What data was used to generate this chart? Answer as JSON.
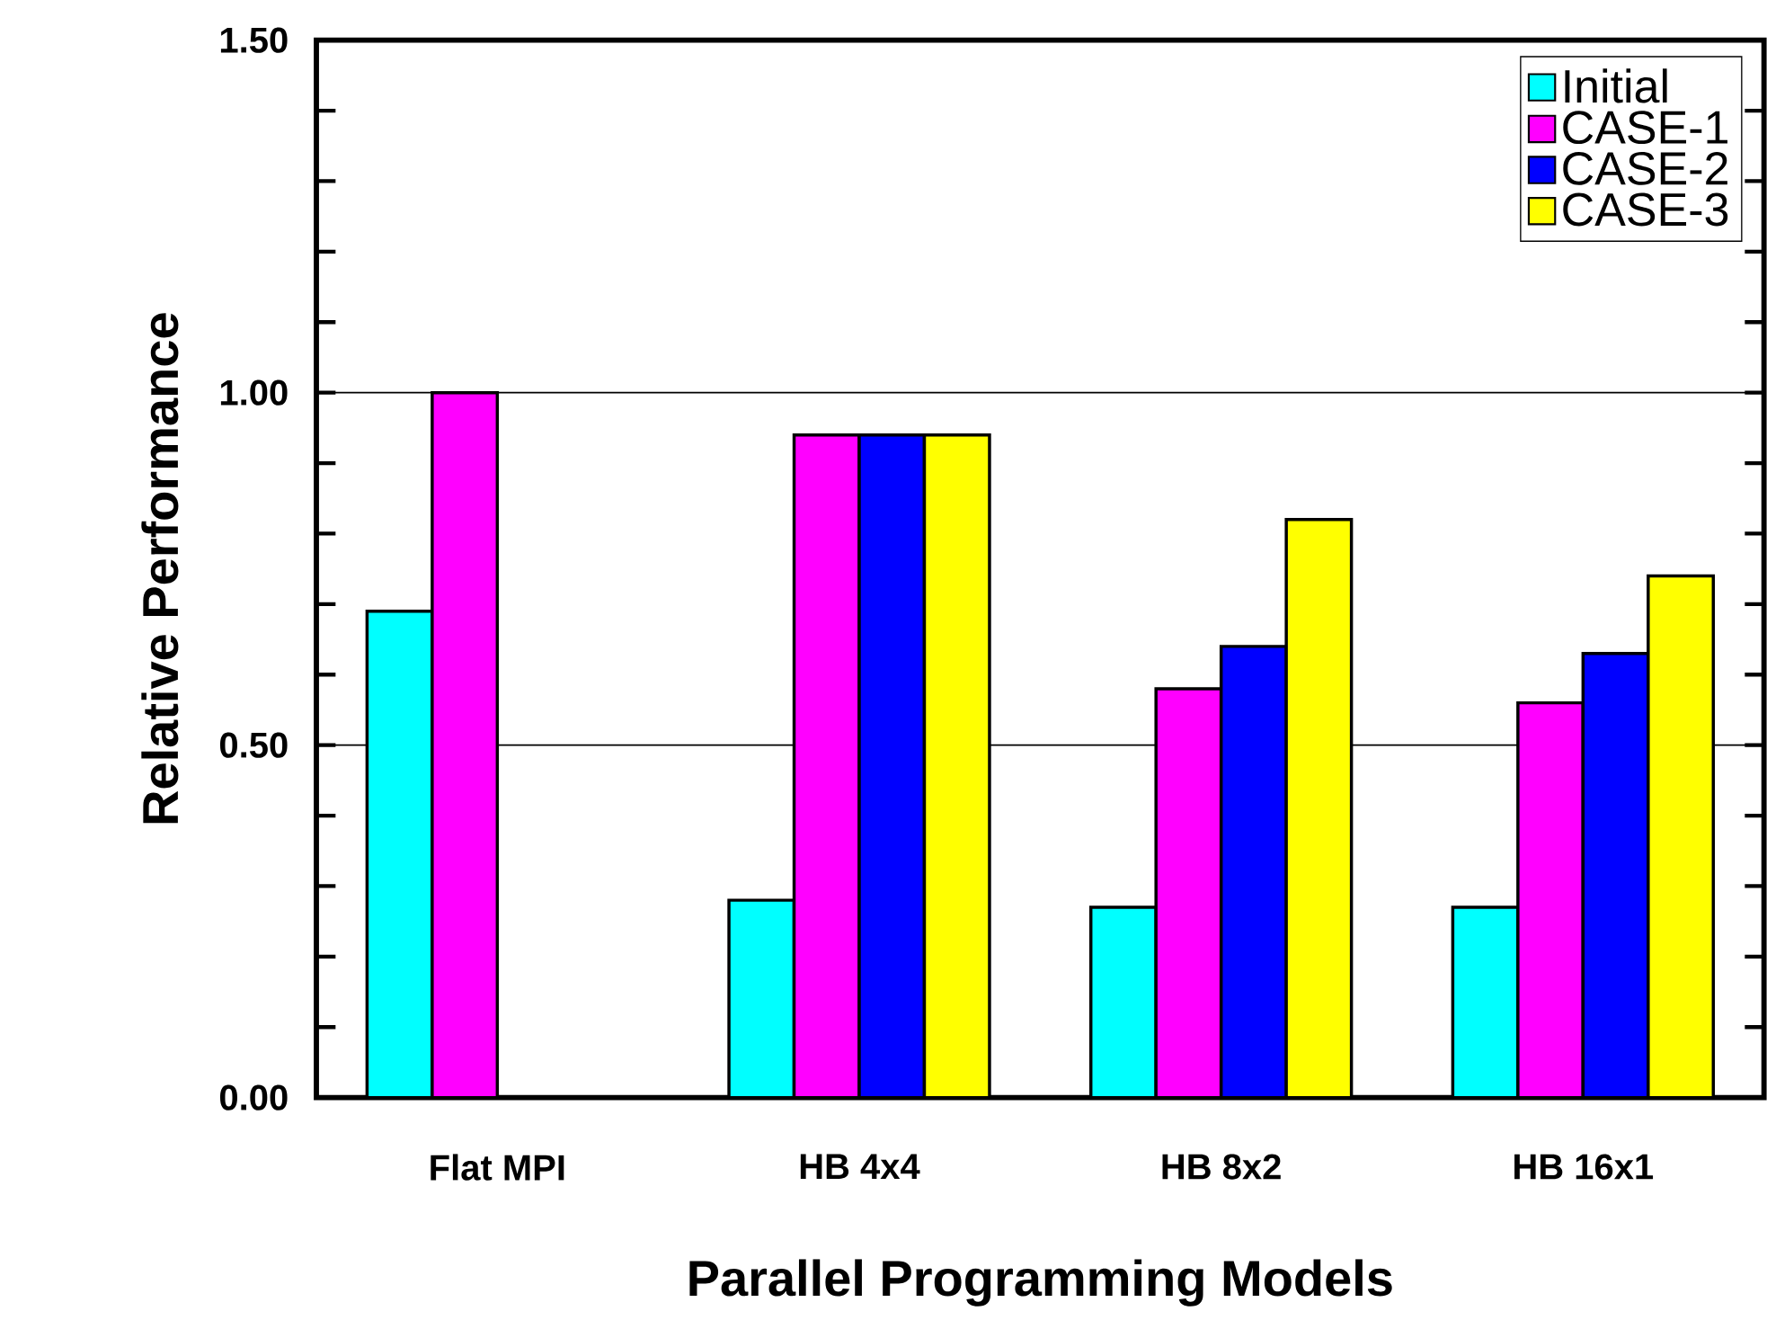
{
  "chart_data": {
    "type": "bar",
    "xlabel": "Parallel Programming Models",
    "ylabel": "Relative Performance",
    "categories": [
      "Flat MPI",
      "HB 4x4",
      "HB 8x2",
      "HB 16x1"
    ],
    "series": [
      {
        "name": "Initial",
        "color": "#00ffff",
        "values": [
          0.69,
          0.28,
          0.27,
          0.27
        ]
      },
      {
        "name": "CASE-1",
        "color": "#ff00ff",
        "values": [
          1.0,
          0.94,
          0.58,
          0.56
        ]
      },
      {
        "name": "CASE-2",
        "color": "#0000ff",
        "values": [
          null,
          0.94,
          0.64,
          0.63
        ]
      },
      {
        "name": "CASE-3",
        "color": "#ffff00",
        "values": [
          null,
          0.94,
          0.82,
          0.74
        ]
      }
    ],
    "ylim": [
      0,
      1.5
    ],
    "yticks": [
      {
        "value": 0,
        "label": "0.00"
      },
      {
        "value": 0.5,
        "label": "0.50"
      },
      {
        "value": 1.0,
        "label": "1.00"
      },
      {
        "value": 1.5,
        "label": "1.50"
      }
    ],
    "grid": "y",
    "legend": "top right"
  }
}
